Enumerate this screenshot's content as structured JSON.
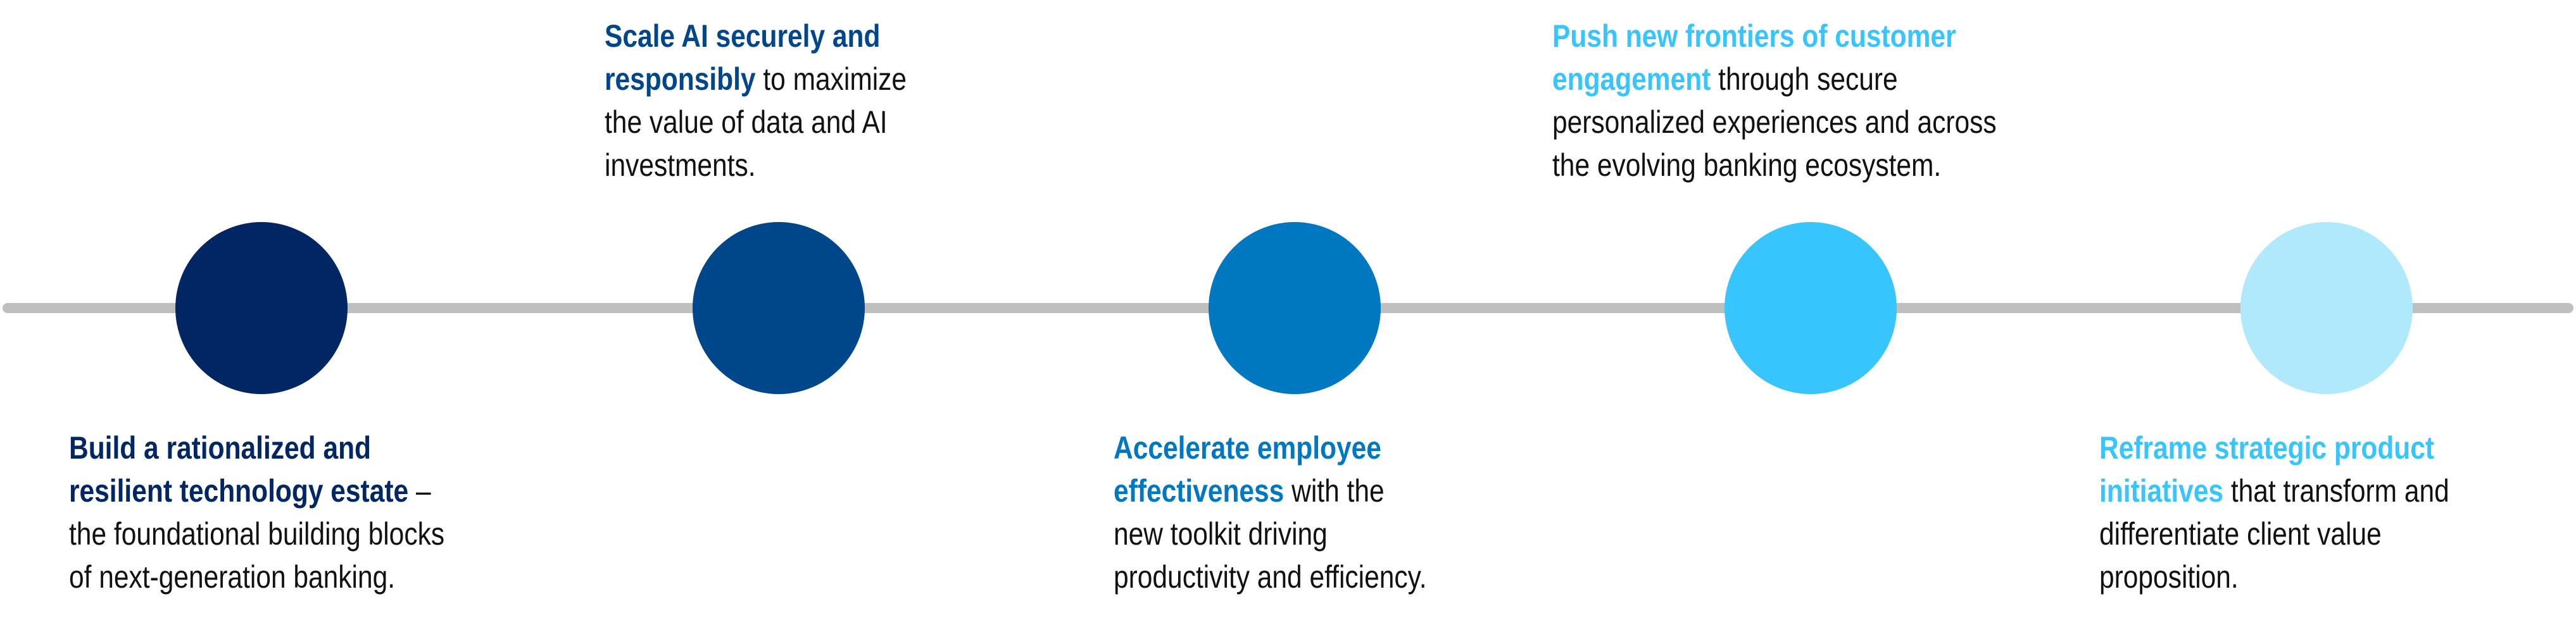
{
  "line_color": "#bfbfbf",
  "milestones": [
    {
      "color": "#002663",
      "lines": [
        {
          "em": "Build a rationalized and",
          "rest": ""
        },
        {
          "em": "resilient technology estate",
          "rest": " –"
        },
        {
          "em": "",
          "rest": "the foundational building blocks"
        },
        {
          "em": "",
          "rest": "of next-generation banking."
        }
      ]
    },
    {
      "color": "#00468b",
      "lines": [
        {
          "em": "Scale AI securely and",
          "rest": ""
        },
        {
          "em": "responsibly",
          "rest": " to maximize"
        },
        {
          "em": "",
          "rest": "the value of data and AI"
        },
        {
          "em": "",
          "rest": "investments."
        }
      ]
    },
    {
      "color": "#0078c1",
      "lines": [
        {
          "em": "Accelerate employee",
          "rest": ""
        },
        {
          "em": "effectiveness",
          "rest": " with the"
        },
        {
          "em": "",
          "rest": "new toolkit driving"
        },
        {
          "em": "",
          "rest": "productivity and efficiency."
        }
      ]
    },
    {
      "color": "#38c4fc",
      "lines": [
        {
          "em": "Push new frontiers of customer",
          "rest": ""
        },
        {
          "em": "engagement",
          "rest": " through secure"
        },
        {
          "em": "",
          "rest": "personalized experiences and across"
        },
        {
          "em": "",
          "rest": "the evolving banking ecosystem."
        }
      ]
    },
    {
      "color": "#b0e8fc",
      "text_color": "#38c4fc",
      "lines": [
        {
          "em": "Reframe strategic product",
          "rest": ""
        },
        {
          "em": "initiatives",
          "rest": " that transform and"
        },
        {
          "em": "",
          "rest": "differentiate client value"
        },
        {
          "em": "",
          "rest": "proposition."
        }
      ]
    }
  ]
}
